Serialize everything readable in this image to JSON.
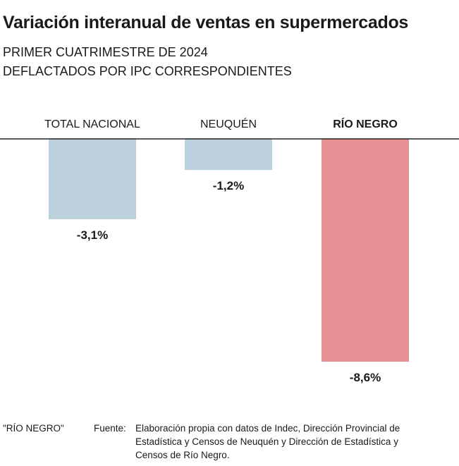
{
  "chart_data": {
    "type": "bar",
    "title": "Variación interanual de ventas en supermercados",
    "subtitle": [
      "PRIMER CUATRIMESTRE DE 2024",
      "DEFLACTADOS POR IPC CORRESPONDIENTES"
    ],
    "categories": [
      "TOTAL NACIONAL",
      "NEUQUÉN",
      "RÍO NEGRO"
    ],
    "values": [
      -3.1,
      -1.2,
      -8.6
    ],
    "value_labels": [
      "-3,1%",
      "-1,2%",
      "-8,6%"
    ],
    "colors": [
      "#bbd0dc",
      "#bbd0dc",
      "#e69094"
    ],
    "highlight": "RÍO NEGRO",
    "xlabel": "",
    "ylabel": "",
    "ylim": [
      -8.6,
      0
    ],
    "grid": false
  },
  "footer": {
    "tag": "\"RÍO NEGRO\"",
    "source_label": "Fuente:",
    "source_lines": [
      "Elaboración propia con datos de Indec, Dirección Provincial de",
      "Estadística y Censos de Neuquén y Dirección de Estadística y",
      "Censos de Río Negro."
    ]
  }
}
